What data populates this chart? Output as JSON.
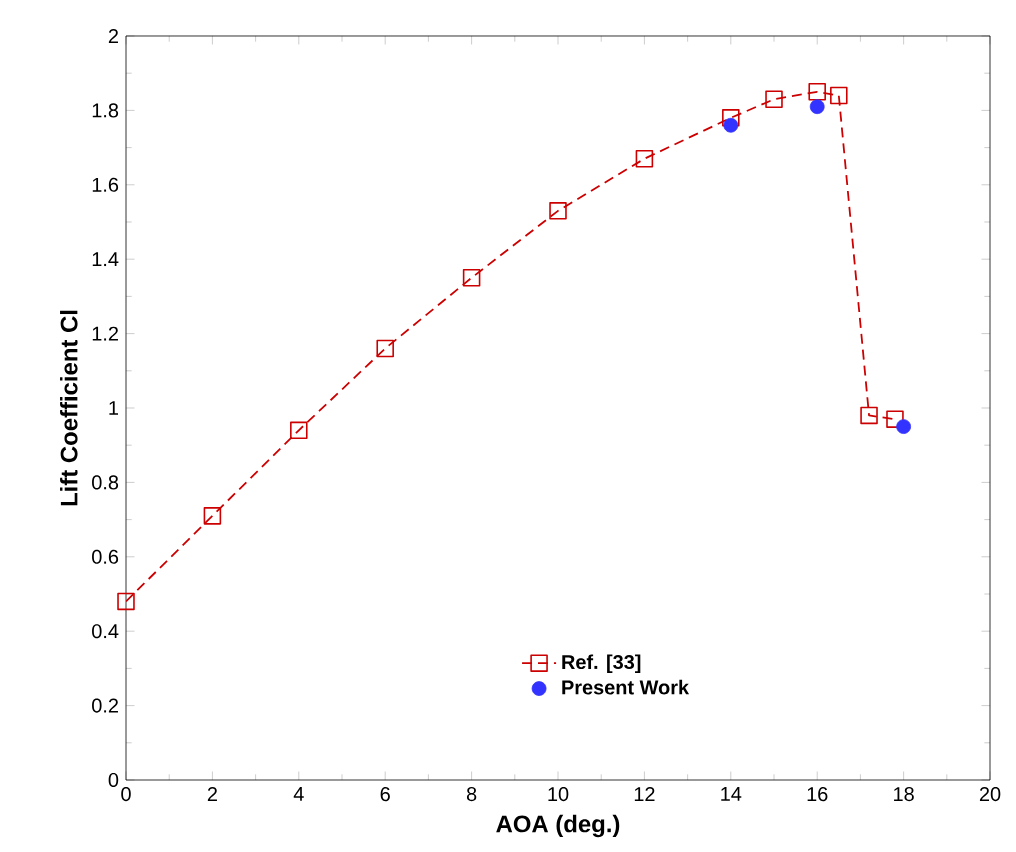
{
  "chart_data": {
    "type": "line",
    "xlabel": "AOA (deg.)",
    "ylabel": "Lift Coefficient  Cl",
    "xlim": [
      0,
      20
    ],
    "ylim": [
      0,
      2
    ],
    "xticks": [
      0,
      2,
      4,
      6,
      8,
      10,
      12,
      14,
      16,
      18,
      20
    ],
    "yticks": [
      0,
      0.2,
      0.4,
      0.6,
      0.8,
      1,
      1.2,
      1.4,
      1.6,
      1.8,
      2
    ],
    "legend": "bottom",
    "grid": false,
    "series": [
      {
        "name": "Ref. [33]",
        "marker": "square",
        "line_style": "dashed",
        "color": "#cc0000",
        "x": [
          0,
          2,
          4,
          6,
          8,
          10,
          12,
          14,
          15,
          16,
          16.5,
          17.2,
          17.8
        ],
        "values": [
          0.48,
          0.71,
          0.94,
          1.16,
          1.35,
          1.53,
          1.67,
          1.78,
          1.83,
          1.85,
          1.84,
          0.98,
          0.97
        ]
      },
      {
        "name": "Present Work",
        "type": "scatter",
        "marker": "circle",
        "color": "#3333ff",
        "x": [
          14,
          16,
          18
        ],
        "values": [
          1.76,
          1.81,
          0.95
        ]
      }
    ]
  }
}
